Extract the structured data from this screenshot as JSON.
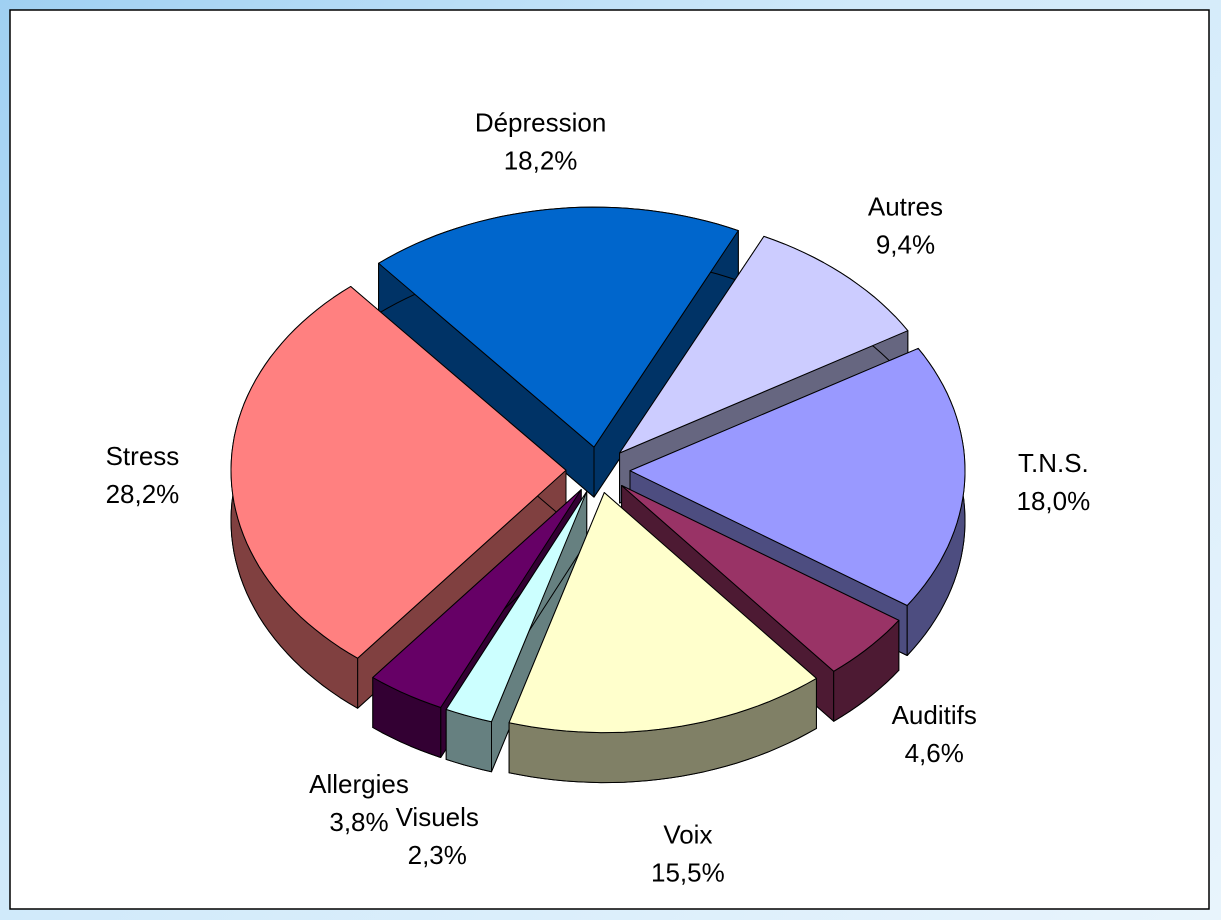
{
  "chart_data": {
    "type": "pie",
    "categories": [
      "Dépression",
      "Autres",
      "T.N.S.",
      "Auditifs",
      "Voix",
      "Visuels",
      "Allergies",
      "Stress"
    ],
    "values": [
      18.2,
      9.4,
      18.0,
      4.6,
      15.5,
      2.3,
      3.8,
      28.2
    ],
    "value_labels": [
      "18,2%",
      "9,4%",
      "18,0%",
      "4,6%",
      "15,5%",
      "2,3%",
      "3,8%",
      "28,2%"
    ],
    "colors": [
      "#0066cc",
      "#ccccff",
      "#9999ff",
      "#993366",
      "#ffffcc",
      "#ccffff",
      "#660066",
      "#ff8080"
    ]
  }
}
